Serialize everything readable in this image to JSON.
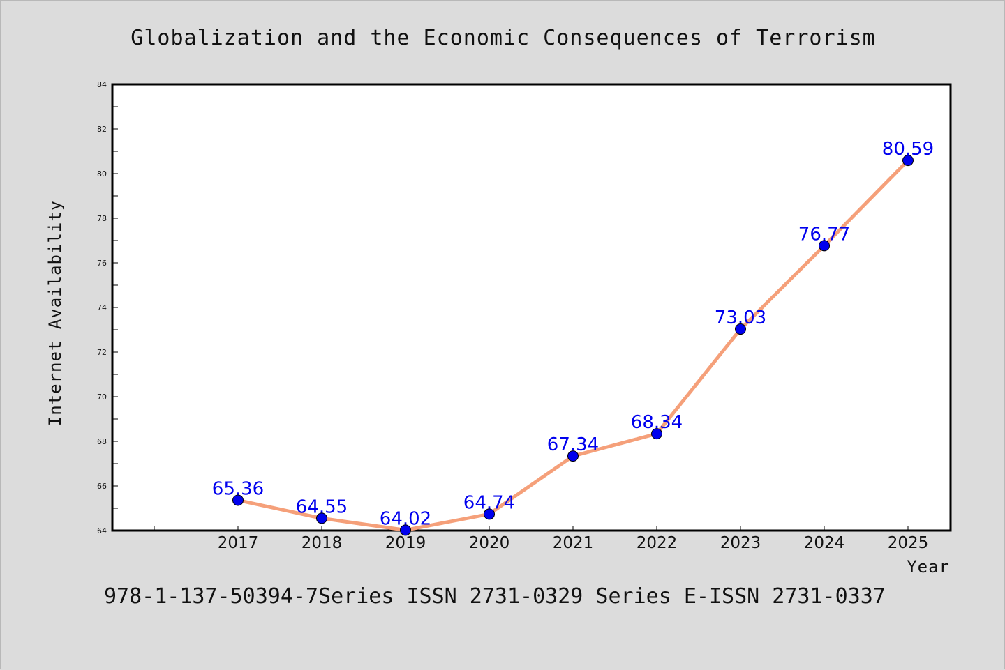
{
  "chart_data": {
    "type": "line",
    "title": "Globalization and the Economic Consequences of Terrorism",
    "xlabel": "Year",
    "ylabel": "Internet Availability",
    "categories": [
      "2017",
      "2018",
      "2019",
      "2020",
      "2021",
      "2022",
      "2023",
      "2024",
      "2025"
    ],
    "values": [
      65.36,
      64.55,
      64.02,
      64.74,
      67.34,
      68.34,
      73.03,
      76.77,
      80.59
    ],
    "data_labels": [
      "65.36",
      "64.55",
      "64.02",
      "64.74",
      "67.34",
      "68.34",
      "73.03",
      "76.77",
      "80.59"
    ],
    "ylim": [
      64,
      84
    ],
    "yticks": [
      "64",
      "66",
      "68",
      "70",
      "72",
      "74",
      "76",
      "78",
      "80",
      "82",
      "84"
    ],
    "grid": false,
    "line_color": "#f5a07a",
    "marker_color": "#0000ee",
    "label_color": "#0000ee"
  },
  "footer": "978-1-137-50394-7Series ISSN 2731-0329 Series E-ISSN 2731-0337"
}
